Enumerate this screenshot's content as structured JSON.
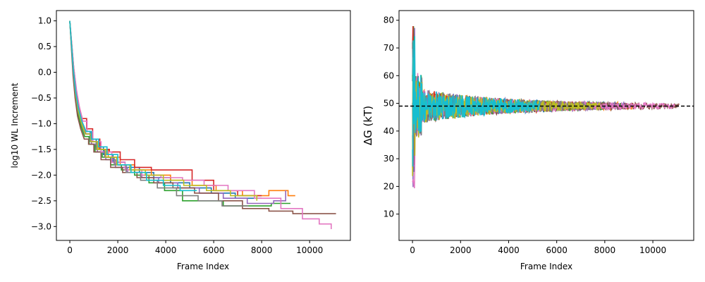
{
  "chart_data": [
    {
      "type": "line",
      "title": "",
      "xlabel": "Frame Index",
      "ylabel": "log10 WL Increment",
      "xlim": [
        -560,
        11700
      ],
      "ylim": [
        -3.27,
        1.2
      ],
      "xticks": [
        0,
        2000,
        4000,
        6000,
        8000,
        10000
      ],
      "xtick_labels": [
        "0",
        "2000",
        "4000",
        "6000",
        "8000",
        "10000"
      ],
      "yticks": [
        -3.0,
        -2.5,
        -2.0,
        -1.5,
        -1.0,
        -0.5,
        0.0,
        0.5,
        1.0
      ],
      "ytick_labels": [
        "−3.0",
        "−2.5",
        "−2.0",
        "−1.5",
        "−1.0",
        "−0.5",
        "0.0",
        "0.5",
        "1.0"
      ],
      "grid": false,
      "legend": "none",
      "series": [
        {
          "color": "#1f77b4",
          "x": [
            0,
            150,
            250,
            350,
            500,
            650,
            850,
            1100,
            1400,
            1800,
            2300,
            2900,
            3500,
            4200,
            5000,
            5900,
            6900,
            8000
          ],
          "y": [
            1.0,
            0.1,
            -0.4,
            -0.7,
            -0.95,
            -1.15,
            -1.3,
            -1.45,
            -1.6,
            -1.75,
            -1.85,
            -1.95,
            -2.05,
            -2.15,
            -2.25,
            -2.35,
            -2.45,
            -2.45
          ]
        },
        {
          "color": "#ff7f0e",
          "x": [
            0,
            150,
            250,
            350,
            500,
            650,
            900,
            1200,
            1600,
            2100,
            2700,
            3400,
            4200,
            5100,
            6100,
            7200,
            8300,
            9100,
            9400
          ],
          "y": [
            1.0,
            0.05,
            -0.45,
            -0.75,
            -1.0,
            -1.2,
            -1.35,
            -1.5,
            -1.65,
            -1.8,
            -1.9,
            -2.0,
            -2.1,
            -2.2,
            -2.3,
            -2.4,
            -2.3,
            -2.4,
            -2.4
          ]
        },
        {
          "color": "#2ca02c",
          "x": [
            0,
            140,
            230,
            330,
            470,
            620,
            800,
            1050,
            1350,
            1700,
            2150,
            2700,
            3300,
            3950,
            4700,
            5500,
            6400,
            7400,
            8400,
            9200
          ],
          "y": [
            1.0,
            0.0,
            -0.5,
            -0.8,
            -1.05,
            -1.25,
            -1.4,
            -1.55,
            -1.65,
            -1.8,
            -1.9,
            -2.0,
            -2.15,
            -2.3,
            -2.5,
            -2.5,
            -2.6,
            -2.6,
            -2.55,
            -2.55
          ]
        },
        {
          "color": "#d62728",
          "x": [
            0,
            160,
            270,
            380,
            520,
            700,
            950,
            1250,
            1650,
            2100,
            2700,
            3400,
            4200,
            5100,
            6000,
            7000,
            8000
          ],
          "y": [
            1.0,
            0.1,
            -0.35,
            -0.65,
            -0.9,
            -1.1,
            -1.3,
            -1.5,
            -1.55,
            -1.7,
            -1.85,
            -1.9,
            -1.9,
            -2.1,
            -2.3,
            -2.4,
            -2.4
          ]
        },
        {
          "color": "#9467bd",
          "x": [
            0,
            150,
            260,
            360,
            500,
            680,
            900,
            1150,
            1500,
            1900,
            2400,
            3000,
            3700,
            4500,
            5400,
            6400,
            7400,
            8500,
            9000
          ],
          "y": [
            1.0,
            0.05,
            -0.4,
            -0.7,
            -1.0,
            -1.2,
            -1.4,
            -1.55,
            -1.7,
            -1.85,
            -1.95,
            -2.05,
            -2.15,
            -2.25,
            -2.35,
            -2.45,
            -2.55,
            -2.5,
            -2.3
          ]
        },
        {
          "color": "#8c564b",
          "x": [
            0,
            130,
            220,
            320,
            450,
            600,
            780,
            1000,
            1300,
            1700,
            2200,
            2800,
            3500,
            4300,
            5200,
            6200,
            7200,
            8300,
            9300,
            10400,
            11100
          ],
          "y": [
            1.0,
            -0.05,
            -0.5,
            -0.85,
            -1.1,
            -1.3,
            -1.4,
            -1.55,
            -1.7,
            -1.85,
            -1.95,
            -2.05,
            -2.15,
            -2.25,
            -2.35,
            -2.5,
            -2.65,
            -2.7,
            -2.75,
            -2.75,
            -2.75
          ]
        },
        {
          "color": "#e377c2",
          "x": [
            0,
            160,
            280,
            390,
            540,
            720,
            960,
            1300,
            1750,
            2300,
            3000,
            3800,
            4700,
            5600,
            6600,
            7700,
            8800,
            9700,
            10400,
            10900
          ],
          "y": [
            1.0,
            0.1,
            -0.35,
            -0.65,
            -0.95,
            -1.15,
            -1.35,
            -1.55,
            -1.75,
            -1.9,
            -2.0,
            -2.05,
            -2.1,
            -2.2,
            -2.3,
            -2.45,
            -2.65,
            -2.85,
            -2.95,
            -3.05
          ]
        },
        {
          "color": "#7f7f7f",
          "x": [
            0,
            140,
            240,
            340,
            480,
            640,
            850,
            1100,
            1450,
            1850,
            2350,
            2950,
            3650,
            4450,
            5350,
            6350,
            7450
          ],
          "y": [
            1.0,
            0.0,
            -0.45,
            -0.75,
            -1.0,
            -1.2,
            -1.35,
            -1.5,
            -1.65,
            -1.8,
            -1.95,
            -2.1,
            -2.25,
            -2.4,
            -2.5,
            -2.6,
            -2.6
          ]
        },
        {
          "color": "#bcbd22",
          "x": [
            0,
            150,
            250,
            350,
            490,
            660,
            880,
            1150,
            1500,
            1950,
            2500,
            3150,
            3900,
            4750,
            5700,
            6700,
            7800
          ],
          "y": [
            1.0,
            0.05,
            -0.45,
            -0.75,
            -1.0,
            -1.2,
            -1.35,
            -1.5,
            -1.65,
            -1.8,
            -1.9,
            -2.0,
            -2.1,
            -2.2,
            -2.3,
            -2.4,
            -2.5
          ]
        },
        {
          "color": "#17becf",
          "x": [
            0,
            150,
            250,
            360,
            500,
            680,
            900,
            1200,
            1550,
            2000,
            2550,
            3200,
            3900,
            4600,
            5300
          ],
          "y": [
            1.0,
            0.05,
            -0.4,
            -0.7,
            -0.95,
            -1.15,
            -1.3,
            -1.45,
            -1.6,
            -1.8,
            -1.95,
            -2.1,
            -2.2,
            -2.3,
            -2.3
          ]
        }
      ]
    },
    {
      "type": "line",
      "title": "",
      "xlabel": "Frame Index",
      "ylabel": "ΔG (kT)",
      "xlim": [
        -560,
        11700
      ],
      "ylim": [
        0.5,
        83.5
      ],
      "xticks": [
        0,
        2000,
        4000,
        6000,
        8000,
        10000
      ],
      "xtick_labels": [
        "0",
        "2000",
        "4000",
        "6000",
        "8000",
        "10000"
      ],
      "yticks": [
        10,
        20,
        30,
        40,
        50,
        60,
        70,
        80
      ],
      "ytick_labels": [
        "10",
        "20",
        "30",
        "40",
        "50",
        "60",
        "70",
        "80"
      ],
      "grid": false,
      "legend": "none",
      "reference_line": {
        "y": 49,
        "style": "dashed",
        "color": "#000000"
      },
      "series": [
        {
          "color": "#1f77b4",
          "end_x": 8100,
          "seed": 11
        },
        {
          "color": "#ff7f0e",
          "end_x": 9300,
          "seed": 23
        },
        {
          "color": "#2ca02c",
          "end_x": 9000,
          "seed": 37
        },
        {
          "color": "#d62728",
          "end_x": 7900,
          "seed": 41
        },
        {
          "color": "#9467bd",
          "end_x": 8900,
          "seed": 53
        },
        {
          "color": "#8c564b",
          "end_x": 11100,
          "seed": 67
        },
        {
          "color": "#e377c2",
          "end_x": 10900,
          "seed": 71
        },
        {
          "color": "#7f7f7f",
          "end_x": 7400,
          "seed": 83
        },
        {
          "color": "#bcbd22",
          "end_x": 7800,
          "seed": 97
        },
        {
          "color": "#17becf",
          "end_x": 5300,
          "seed": 101
        }
      ]
    }
  ]
}
